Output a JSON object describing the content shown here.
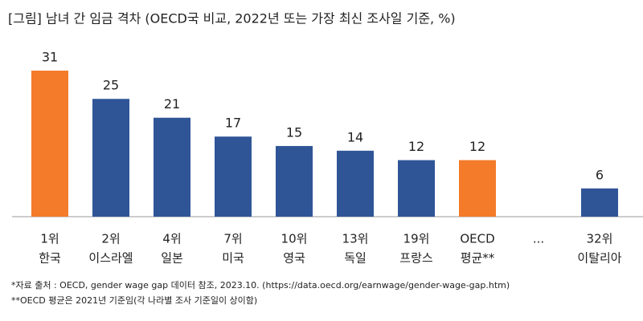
{
  "chart_data": {
    "type": "bar",
    "title": "[그림] 남녀 간 임금 격차 (OECD국 비교, 2022년 또는 가장 최신 조사일 기준, %)",
    "categories": [
      [
        "1위",
        "한국"
      ],
      [
        "2위",
        "이스라엘"
      ],
      [
        "4위",
        "일본"
      ],
      [
        "7위",
        "미국"
      ],
      [
        "10위",
        "영국"
      ],
      [
        "13위",
        "독일"
      ],
      [
        "19위",
        "프랑스"
      ],
      [
        "OECD",
        "평균**"
      ],
      [
        "..."
      ],
      [
        "32위",
        "이탈리아"
      ]
    ],
    "values": [
      31,
      25,
      21,
      17,
      15,
      14,
      12,
      12,
      null,
      6
    ],
    "colors": [
      "#f47b2a",
      "#2f5597",
      "#2f5597",
      "#2f5597",
      "#2f5597",
      "#2f5597",
      "#2f5597",
      "#f47b2a",
      null,
      "#2f5597"
    ],
    "ylim": [
      0,
      31
    ],
    "notes": [
      "*자료 출처 : OECD, gender wage gap 데이터 참조, 2023.10. (https://data.oecd.org/earnwage/gender-wage-gap.htm)",
      "**OECD 평균은 2021년 기준임(각 나라별 조사 기준일이 상이함)"
    ]
  }
}
